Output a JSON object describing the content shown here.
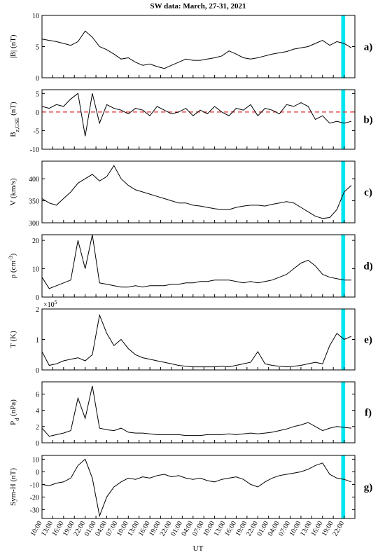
{
  "chart_data": {
    "type": "line",
    "title": "SW data: March, 27-31, 2021",
    "xlabel": "UT",
    "xlim": [
      0,
      87
    ],
    "xticks": [
      {
        "value": 0,
        "label": "10:00"
      },
      {
        "value": 3,
        "label": "13:00"
      },
      {
        "value": 6,
        "label": "16:00"
      },
      {
        "value": 9,
        "label": "19:00"
      },
      {
        "value": 12,
        "label": "22:00"
      },
      {
        "value": 15,
        "label": "01:00"
      },
      {
        "value": 18,
        "label": "04:00"
      },
      {
        "value": 21,
        "label": "07:00"
      },
      {
        "value": 24,
        "label": "10:00"
      },
      {
        "value": 27,
        "label": "13:00"
      },
      {
        "value": 30,
        "label": "16:00"
      },
      {
        "value": 33,
        "label": "19:00"
      },
      {
        "value": 36,
        "label": "22:00"
      },
      {
        "value": 39,
        "label": "01:00"
      },
      {
        "value": 42,
        "label": "04:00"
      },
      {
        "value": 45,
        "label": "07:00"
      },
      {
        "value": 48,
        "label": "10:00"
      },
      {
        "value": 51,
        "label": "13:00"
      },
      {
        "value": 54,
        "label": "16:00"
      },
      {
        "value": 57,
        "label": "19:00"
      },
      {
        "value": 60,
        "label": "22:00"
      },
      {
        "value": 63,
        "label": "01:00"
      },
      {
        "value": 66,
        "label": "04:00"
      },
      {
        "value": 69,
        "label": "07:00"
      },
      {
        "value": 72,
        "label": "10:00"
      },
      {
        "value": 75,
        "label": "13:00"
      },
      {
        "value": 78,
        "label": "16:00"
      },
      {
        "value": 81,
        "label": "19:00"
      },
      {
        "value": 84,
        "label": "22:00"
      }
    ],
    "highlight": [
      83.2,
      84.3
    ],
    "highlight_color": "#00e5ee",
    "x": [
      0,
      2,
      4,
      6,
      8,
      10,
      12,
      14,
      16,
      18,
      20,
      22,
      24,
      26,
      28,
      30,
      32,
      34,
      36,
      38,
      40,
      42,
      44,
      46,
      48,
      50,
      52,
      54,
      56,
      58,
      60,
      62,
      64,
      66,
      68,
      70,
      72,
      74,
      76,
      78,
      80,
      82,
      84,
      86
    ],
    "panels": [
      {
        "panel_label": "a)",
        "ylabel": [
          {
            "text": "|B| (nT)"
          }
        ],
        "ylim": [
          0,
          10
        ],
        "yticks": [
          0,
          5,
          10
        ],
        "series": [
          {
            "color": "#000000",
            "values": [
              6.2,
              6.0,
              5.8,
              5.5,
              5.2,
              5.8,
              7.5,
              6.5,
              5.0,
              4.5,
              3.8,
              3.0,
              3.2,
              2.5,
              2.0,
              2.2,
              1.8,
              1.5,
              2.0,
              2.5,
              3.0,
              2.8,
              2.8,
              3.0,
              3.2,
              3.5,
              4.3,
              3.8,
              3.2,
              3.0,
              3.2,
              3.5,
              3.8,
              4.0,
              4.2,
              4.6,
              4.8,
              5.0,
              5.5,
              6.0,
              5.2,
              5.8,
              5.5,
              4.8
            ]
          }
        ]
      },
      {
        "panel_label": "b)",
        "ylabel": [
          {
            "text": "B"
          },
          {
            "text": "z,GSE",
            "shift": "sub"
          },
          {
            "text": " (nT)"
          }
        ],
        "ylim": [
          -10,
          6
        ],
        "yticks": [
          -10,
          -5,
          0,
          5
        ],
        "ref_line": 0,
        "ref_color": "#e03030",
        "series": [
          {
            "color": "#000000",
            "values": [
              1.5,
              1.0,
              2.0,
              1.5,
              3.5,
              5.0,
              -6.5,
              5.0,
              -3.0,
              2.0,
              1.0,
              0.5,
              -0.5,
              1.0,
              0.5,
              -1.0,
              1.5,
              0.5,
              -0.5,
              0.0,
              1.0,
              -1.0,
              0.5,
              -0.5,
              1.5,
              0.0,
              -1.0,
              1.0,
              0.5,
              2.0,
              -1.0,
              1.0,
              0.5,
              -0.5,
              2.0,
              1.5,
              2.5,
              1.5,
              -2.0,
              -1.0,
              -3.0,
              -2.5,
              -3.0,
              -2.5
            ]
          }
        ]
      },
      {
        "panel_label": "c)",
        "ylabel": [
          {
            "text": "V (km/s)"
          }
        ],
        "ylim": [
          300,
          440
        ],
        "yticks": [
          300,
          350,
          400
        ],
        "series": [
          {
            "color": "#000000",
            "values": [
              355,
              345,
              340,
              355,
              370,
              390,
              400,
              410,
              395,
              405,
              430,
              400,
              385,
              375,
              370,
              365,
              360,
              355,
              350,
              345,
              345,
              340,
              338,
              335,
              332,
              330,
              330,
              335,
              338,
              340,
              340,
              338,
              342,
              345,
              348,
              345,
              335,
              325,
              315,
              310,
              312,
              330,
              370,
              385
            ]
          }
        ]
      },
      {
        "panel_label": "d)",
        "ylabel": [
          {
            "text": "ρ (cm"
          },
          {
            "text": "-3",
            "shift": "super"
          },
          {
            "text": ")"
          }
        ],
        "ylim": [
          0,
          22
        ],
        "yticks": [
          0,
          10,
          20
        ],
        "series": [
          {
            "color": "#000000",
            "values": [
              7,
              3,
              4,
              5,
              6,
              20,
              10,
              22,
              5,
              4.5,
              4,
              3.5,
              3.5,
              4,
              3.5,
              4,
              4,
              4,
              4.5,
              4.5,
              5,
              5,
              5.5,
              5.5,
              6,
              6,
              6,
              5.5,
              5,
              5.5,
              5,
              5.5,
              6,
              7,
              8,
              10,
              12,
              13,
              11,
              8,
              7,
              6.5,
              6,
              6
            ]
          }
        ]
      },
      {
        "panel_label": "e)",
        "ylabel": [
          {
            "text": "T (K)"
          }
        ],
        "multiplier": [
          {
            "text": "×10"
          },
          {
            "text": "5",
            "shift": "super"
          }
        ],
        "ylim": [
          0,
          2
        ],
        "yticks": [
          0,
          1,
          2
        ],
        "series": [
          {
            "color": "#000000",
            "values": [
              0.6,
              0.15,
              0.2,
              0.3,
              0.35,
              0.4,
              0.3,
              0.5,
              1.8,
              1.2,
              0.8,
              1.0,
              0.7,
              0.5,
              0.4,
              0.35,
              0.3,
              0.25,
              0.2,
              0.15,
              0.12,
              0.1,
              0.1,
              0.1,
              0.1,
              0.12,
              0.1,
              0.15,
              0.2,
              0.25,
              0.6,
              0.2,
              0.15,
              0.12,
              0.1,
              0.12,
              0.15,
              0.2,
              0.25,
              0.2,
              0.8,
              1.2,
              1.0,
              1.1
            ]
          }
        ]
      },
      {
        "panel_label": "f)",
        "ylabel": [
          {
            "text": "P"
          },
          {
            "text": "d",
            "shift": "sub"
          },
          {
            "text": " (nPa)"
          }
        ],
        "ylim": [
          0,
          7.5
        ],
        "yticks": [
          0,
          2,
          4,
          6
        ],
        "series": [
          {
            "color": "#000000",
            "values": [
              1.8,
              0.8,
              1.0,
              1.2,
              1.5,
              5.5,
              3.0,
              7.0,
              1.8,
              1.6,
              1.5,
              1.8,
              1.3,
              1.2,
              1.2,
              1.1,
              1.0,
              1.0,
              1.0,
              1.0,
              0.9,
              0.9,
              0.9,
              1.0,
              1.0,
              1.0,
              1.1,
              1.0,
              1.1,
              1.2,
              1.1,
              1.2,
              1.3,
              1.5,
              1.7,
              2.0,
              2.2,
              2.5,
              2.0,
              1.5,
              1.8,
              2.0,
              1.9,
              1.8
            ]
          }
        ]
      },
      {
        "panel_label": "g)",
        "ylabel": [
          {
            "text": "Sym-H (nT)"
          }
        ],
        "ylim": [
          -37,
          13
        ],
        "yticks": [
          -30,
          -20,
          -10,
          0,
          10
        ],
        "series": [
          {
            "color": "#000000",
            "values": [
              -10,
              -11,
              -9,
              -8,
              -5,
              5,
              10,
              -5,
              -35,
              -20,
              -12,
              -8,
              -5,
              -6,
              -4,
              -5,
              -3,
              -2,
              -4,
              -3,
              -5,
              -6,
              -5,
              -7,
              -8,
              -6,
              -5,
              -4,
              -6,
              -10,
              -12,
              -8,
              -5,
              -3,
              -2,
              -1,
              0,
              2,
              5,
              7,
              -2,
              -5,
              -6,
              -8
            ]
          }
        ]
      }
    ]
  }
}
